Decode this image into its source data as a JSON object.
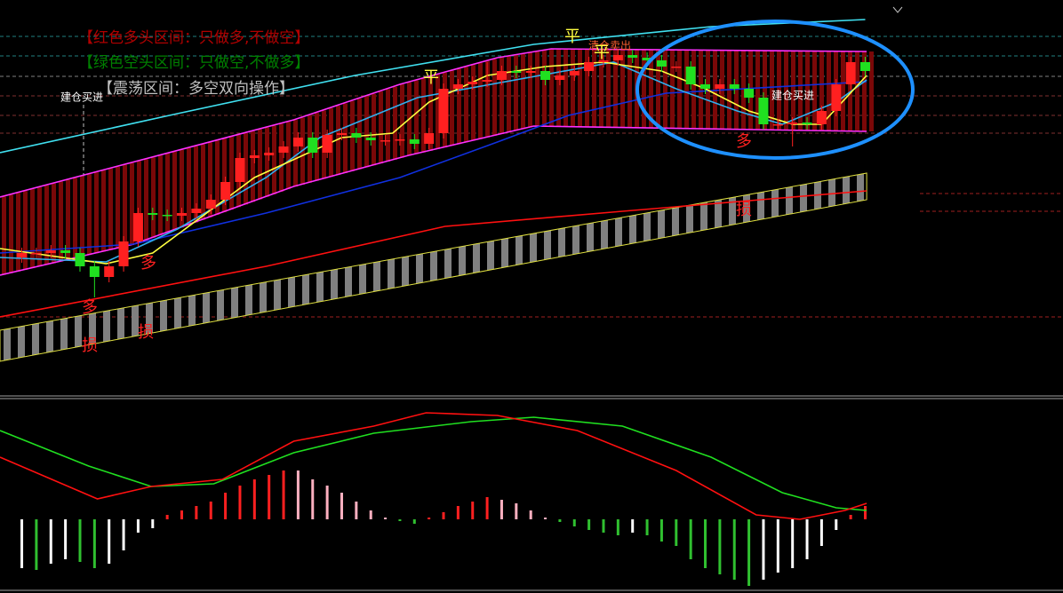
{
  "chart_data": [
    {
      "type": "candlestick",
      "xlim": [
        -1.5,
        71.6
      ],
      "ylim": [
        0,
        445
      ],
      "up_color": "#ff2020",
      "down_color": "#20e020",
      "x": [
        0,
        1,
        2,
        3,
        4,
        5,
        6,
        7,
        8,
        9,
        10,
        11,
        12,
        13,
        14,
        15,
        16,
        17,
        18,
        19,
        20,
        21,
        22,
        23,
        24,
        25,
        26,
        27,
        28,
        29,
        30,
        31,
        32,
        33,
        34,
        35,
        36,
        37,
        38,
        39,
        40,
        41,
        42,
        43,
        44,
        45,
        46,
        47,
        48,
        49,
        50,
        51,
        52,
        53,
        54,
        55,
        56,
        57,
        58
      ],
      "open": [
        155,
        160,
        160,
        163,
        160,
        145,
        133,
        145,
        173,
        205,
        203,
        202,
        205,
        210,
        220,
        240,
        267,
        270,
        273,
        280,
        290,
        273,
        293,
        295,
        290,
        287,
        287,
        288,
        283,
        295,
        345,
        350,
        353,
        355,
        365,
        363,
        365,
        355,
        360,
        365,
        375,
        377,
        383,
        380,
        377,
        370,
        370,
        350,
        345,
        350,
        345,
        335,
        305,
        305,
        307,
        305,
        320,
        350,
        375
      ],
      "high": [
        166,
        166,
        169,
        169,
        166,
        151,
        151,
        179,
        211,
        211,
        209,
        211,
        216,
        226,
        246,
        273,
        276,
        279,
        286,
        296,
        296,
        299,
        301,
        301,
        296,
        293,
        294,
        294,
        301,
        351,
        356,
        359,
        375,
        371,
        371,
        371,
        371,
        366,
        371,
        381,
        383,
        389,
        389,
        386,
        383,
        376,
        376,
        356,
        356,
        356,
        351,
        341,
        311,
        313,
        313,
        326,
        356,
        381,
        381
      ],
      "low": [
        149,
        154,
        154,
        154,
        139,
        110,
        127,
        139,
        167,
        197,
        196,
        196,
        199,
        204,
        214,
        234,
        261,
        264,
        267,
        274,
        267,
        267,
        287,
        284,
        281,
        281,
        281,
        277,
        277,
        289,
        339,
        344,
        347,
        349,
        357,
        357,
        349,
        349,
        354,
        359,
        369,
        371,
        374,
        371,
        364,
        364,
        344,
        339,
        339,
        339,
        329,
        299,
        299,
        280,
        299,
        299,
        314,
        344,
        359
      ],
      "close": [
        160,
        160,
        163,
        160,
        145,
        133,
        145,
        173,
        205,
        203,
        202,
        205,
        210,
        220,
        240,
        267,
        270,
        273,
        280,
        290,
        273,
        293,
        295,
        290,
        287,
        287,
        288,
        283,
        295,
        345,
        350,
        353,
        355,
        365,
        363,
        365,
        355,
        360,
        365,
        375,
        377,
        383,
        380,
        377,
        370,
        370,
        350,
        345,
        350,
        345,
        335,
        305,
        305,
        307,
        305,
        320,
        350,
        375,
        365
      ],
      "lines": [
        {
          "color": "#40e0f0",
          "x": [
            -1.5,
            10.7,
            22.9,
            35.2,
            47.4,
            58
          ],
          "values": [
            273,
            317,
            360,
            395,
            415,
            423
          ]
        },
        {
          "color": "#ff30ff",
          "x": [
            -1.5,
            18.7,
            26,
            32.7,
            36.4,
            58.1
          ],
          "values": [
            223,
            310,
            350,
            380,
            390,
            387
          ]
        },
        {
          "color": "#ff30ff",
          "x": [
            -1.5,
            7.7,
            18.7,
            26.6,
            35.2,
            58.1
          ],
          "values": [
            135,
            170,
            235,
            270,
            303,
            297
          ]
        },
        {
          "color": "#ff1010",
          "x": [
            -1.5,
            16.8,
            29.1,
            41.3,
            58.1
          ],
          "values": [
            88,
            145,
            190,
            207,
            230
          ]
        },
        {
          "color": "#1030e0",
          "x": [
            -1.5,
            7.7,
            16.8,
            26,
            32.7,
            37.6,
            44.3,
            58.1
          ],
          "values": [
            160,
            170,
            205,
            245,
            285,
            315,
            340,
            353
          ]
        },
        {
          "color": "#30b0f0",
          "x": [
            -1.5,
            5.8,
            10.7,
            16.8,
            20.5,
            27.2,
            40.7,
            45,
            49.2,
            52.3,
            56,
            58.1
          ],
          "values": [
            155,
            150,
            187,
            245,
            290,
            335,
            375,
            345,
            320,
            305,
            330,
            355
          ]
        },
        {
          "color": "#ffff40",
          "x": [
            -1.5,
            5.8,
            9,
            16,
            22,
            25.5,
            28,
            32,
            36,
            40,
            44,
            47,
            50,
            53,
            55,
            58.1
          ],
          "values": [
            165,
            148,
            160,
            245,
            290,
            295,
            330,
            360,
            370,
            375,
            365,
            345,
            320,
            305,
            305,
            360
          ]
        }
      ],
      "band": {
        "color": "#808080",
        "edge": "#e0e040",
        "x": [
          -1.5,
          58.1
        ],
        "upper": [
          73,
          250
        ],
        "lower": [
          38,
          220
        ]
      },
      "annotations": [
        {
          "text": "【红色多头区间：只做多,不做空】",
          "color": "#b00000"
        },
        {
          "text": "【绿色空头区间：只做空,不做多】",
          "color": "#008000"
        },
        {
          "text": "【震荡区间：多空双向操作】",
          "color": "#c0c0c0"
        },
        {
          "text": "建仓买进",
          "color": "#ffffff"
        },
        {
          "text": "建仓买进",
          "color": "#ffffff"
        },
        {
          "text": "清仓卖出",
          "color": "#ff6030"
        },
        {
          "text": "平",
          "color": "#ffff40"
        },
        {
          "text": "平",
          "color": "#ffff40"
        },
        {
          "text": "平",
          "color": "#ffff40"
        },
        {
          "text": "多",
          "color": "#ff2020"
        },
        {
          "text": "多",
          "color": "#ff2020"
        },
        {
          "text": "多",
          "color": "#ff2020"
        },
        {
          "text": "损",
          "color": "#ff2020"
        },
        {
          "text": "损",
          "color": "#ff2020"
        },
        {
          "text": "损",
          "color": "#ff2020"
        }
      ]
    },
    {
      "type": "macd",
      "xlim": [
        -1.5,
        71.6
      ],
      "ylim": [
        -80,
        135
      ],
      "x": [
        0,
        1,
        2,
        3,
        4,
        5,
        6,
        7,
        8,
        9,
        10,
        11,
        12,
        13,
        14,
        15,
        16,
        17,
        18,
        19,
        20,
        21,
        22,
        23,
        24,
        25,
        26,
        27,
        28,
        29,
        30,
        31,
        32,
        33,
        34,
        35,
        36,
        37,
        38,
        39,
        40,
        41,
        42,
        43,
        44,
        45,
        46,
        47,
        48,
        49,
        50,
        51,
        52,
        53,
        54,
        55,
        56,
        57,
        58
      ],
      "values": [
        -55,
        -57,
        -50,
        -45,
        -48,
        -55,
        -50,
        -35,
        -15,
        -10,
        5,
        10,
        15,
        20,
        30,
        38,
        45,
        50,
        55,
        55,
        45,
        38,
        30,
        20,
        10,
        2,
        -2,
        -5,
        2,
        8,
        15,
        20,
        25,
        22,
        18,
        10,
        2,
        -3,
        -8,
        -12,
        -15,
        -18,
        -15,
        -18,
        -25,
        -30,
        -45,
        -55,
        -62,
        -68,
        -75,
        -68,
        -60,
        -55,
        -45,
        -30,
        -12,
        5,
        15
      ],
      "colors": {
        "up_rising": "#ff2020",
        "up_falling": "#ffb0c0",
        "down_falling": "#30c030",
        "down_rising": "#ffffff"
      },
      "lines": [
        {
          "color": "#20e020",
          "x": [
            -1.5,
            4.6,
            8.9,
            13.2,
            18.7,
            24.2,
            30.9,
            35.2,
            41.3,
            47.4,
            52.3,
            56,
            58.1
          ],
          "values": [
            100,
            60,
            37,
            40,
            75,
            97,
            110,
            115,
            105,
            70,
            30,
            13,
            10
          ]
        },
        {
          "color": "#ff1010",
          "x": [
            -1.5,
            5.2,
            8.9,
            13.8,
            18.7,
            24.2,
            27.8,
            32.7,
            38.2,
            45,
            50.5,
            53.5,
            56.6,
            58.1
          ],
          "values": [
            70,
            23,
            37,
            45,
            88,
            105,
            120,
            117,
            100,
            55,
            5,
            0,
            10,
            18
          ]
        }
      ]
    }
  ]
}
